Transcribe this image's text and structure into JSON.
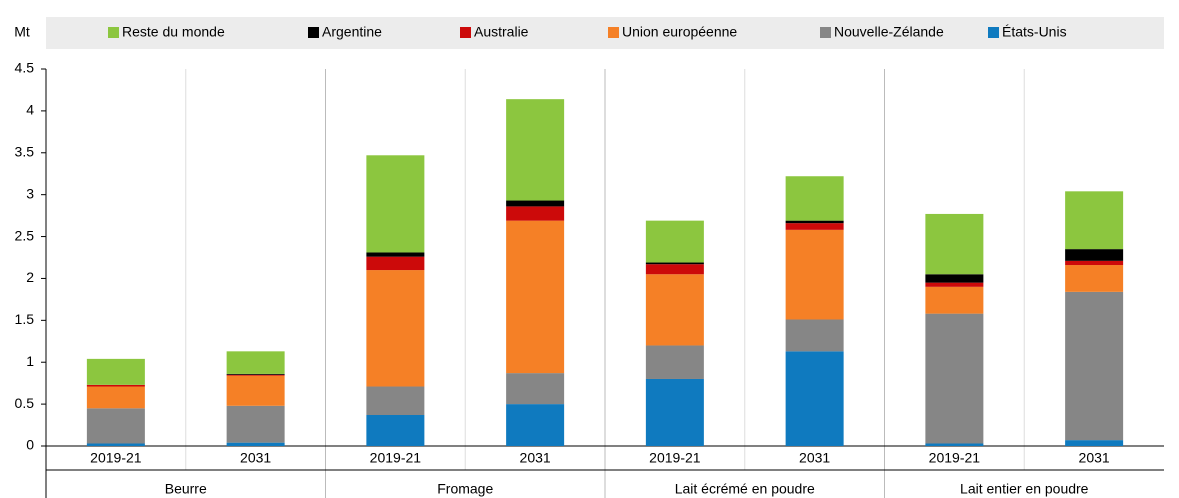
{
  "chart_data": {
    "type": "bar",
    "stacked": true,
    "y_label": "Mt",
    "categories": [
      "2019-21",
      "2031",
      "2019-21",
      "2031",
      "2019-21",
      "2031",
      "2019-21",
      "2031"
    ],
    "groups": [
      "Beurre",
      "Fromage",
      "Lait écrémé en poudre",
      "Lait entier en poudre"
    ],
    "series": [
      {
        "name": "États-Unis",
        "color": "#0f7abf",
        "values": [
          0.03,
          0.04,
          0.37,
          0.5,
          0.8,
          1.13,
          0.03,
          0.07
        ]
      },
      {
        "name": "Nouvelle-Zélande",
        "color": "#868686",
        "values": [
          0.42,
          0.44,
          0.34,
          0.37,
          0.4,
          0.38,
          1.55,
          1.77
        ]
      },
      {
        "name": "Union européenne",
        "color": "#f58026",
        "values": [
          0.26,
          0.36,
          1.39,
          1.82,
          0.85,
          1.07,
          0.32,
          0.32
        ]
      },
      {
        "name": "Australie",
        "color": "#cc0a0a",
        "values": [
          0.02,
          0.01,
          0.16,
          0.17,
          0.12,
          0.08,
          0.05,
          0.05
        ]
      },
      {
        "name": "Argentine",
        "color": "#000000",
        "values": [
          0.0,
          0.01,
          0.05,
          0.07,
          0.02,
          0.03,
          0.1,
          0.14
        ]
      },
      {
        "name": "Reste du monde",
        "color": "#8cc63f",
        "values": [
          0.31,
          0.27,
          1.16,
          1.21,
          0.5,
          0.53,
          0.72,
          0.69
        ]
      }
    ],
    "ylim": [
      0,
      4.5
    ],
    "yticks": [
      0,
      0.5,
      1,
      1.5,
      2,
      2.5,
      3,
      3.5,
      4,
      4.5
    ]
  }
}
